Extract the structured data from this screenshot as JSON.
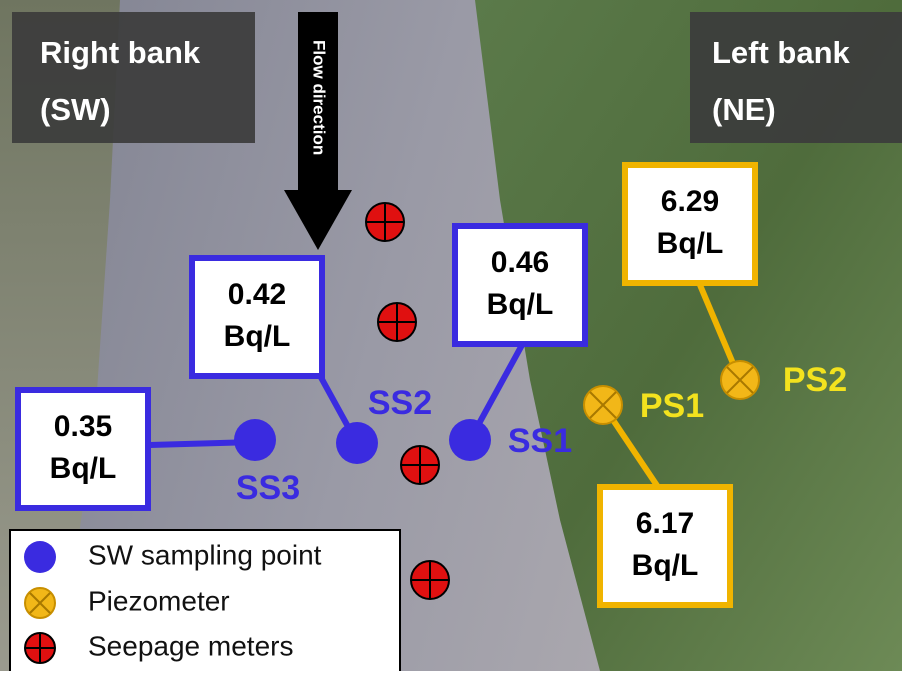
{
  "right_bank": [
    "Right bank",
    "(SW)"
  ],
  "left_bank": [
    "Left bank",
    "(NE)"
  ],
  "flow_direction": "Flow direction",
  "points": [
    {
      "label": "SS1",
      "value": "0.46",
      "unit": "Bq/L"
    },
    {
      "label": "SS2",
      "value": "0.42",
      "unit": "Bq/L"
    },
    {
      "label": "SS3",
      "value": "0.35",
      "unit": "Bq/L"
    },
    {
      "label": "PS1",
      "value": "6.17",
      "unit": "Bq/L"
    },
    {
      "label": "PS2",
      "value": "6.29",
      "unit": "Bq/L"
    }
  ],
  "legend": [
    "SW sampling point",
    "Piezometer",
    "Seepage meters"
  ]
}
